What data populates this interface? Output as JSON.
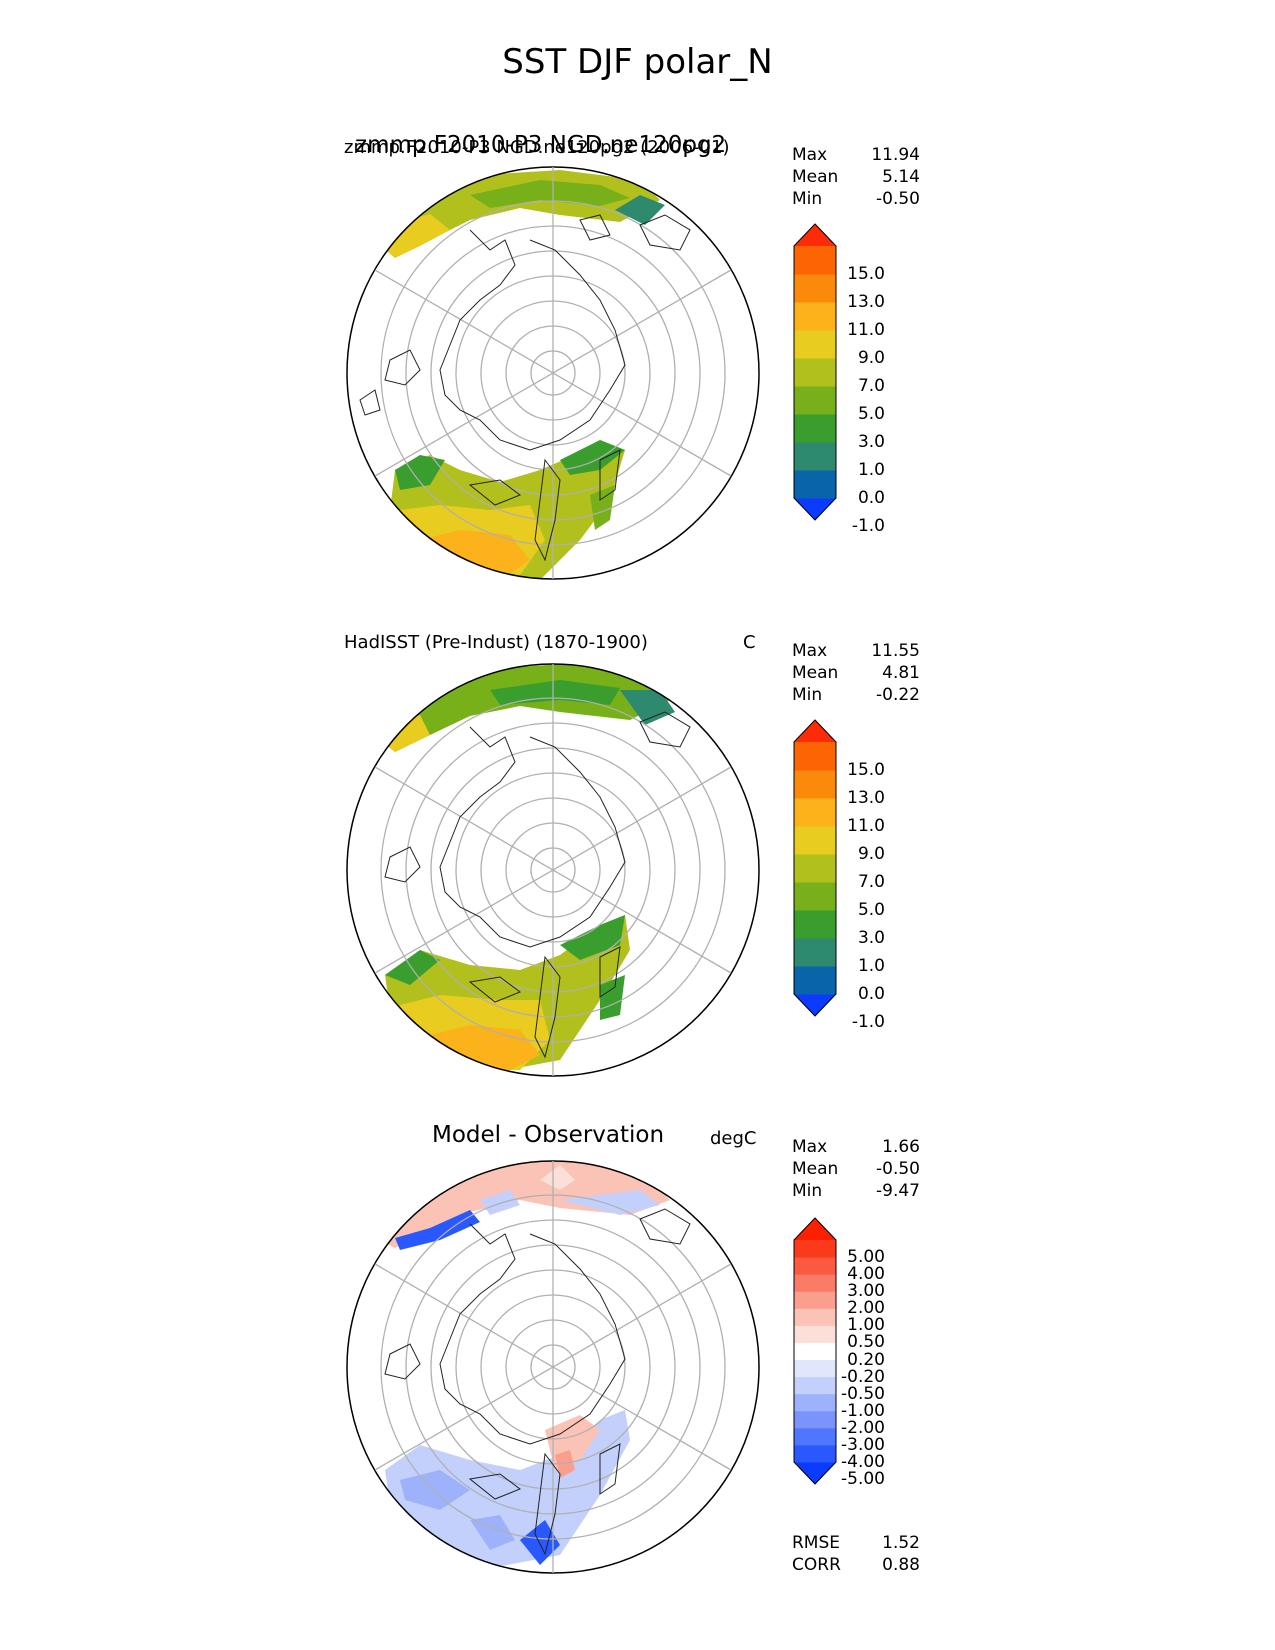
{
  "title": "SST DJF polar_N",
  "panels": [
    {
      "title_left": "zmmp.F2010-P3 NGD.ne120pg2 (2006-01)",
      "title_overlap": "zmmp.F2010-P3 NGD.ne120pg2",
      "units": "",
      "stats": [
        {
          "label": "Max",
          "value": "11.94"
        },
        {
          "label": "Mean",
          "value": "5.14"
        },
        {
          "label": "Min",
          "value": "-0.50"
        }
      ],
      "colorbar_labels": [
        "15.0",
        "13.0",
        "11.0",
        "9.0",
        "7.0",
        "5.0",
        "3.0",
        "1.0",
        "0.0",
        "-1.0"
      ]
    },
    {
      "title_left": "HadISST (Pre-Indust) (1870-1900)",
      "units": "C",
      "stats": [
        {
          "label": "Max",
          "value": "11.55"
        },
        {
          "label": "Mean",
          "value": "4.81"
        },
        {
          "label": "Min",
          "value": "-0.22"
        }
      ],
      "colorbar_labels": [
        "15.0",
        "13.0",
        "11.0",
        "9.0",
        "7.0",
        "5.0",
        "3.0",
        "1.0",
        "0.0",
        "-1.0"
      ]
    },
    {
      "title_center": "Model - Observation",
      "units": "degC",
      "stats": [
        {
          "label": "Max",
          "value": "1.66"
        },
        {
          "label": "Mean",
          "value": "-0.50"
        },
        {
          "label": "Min",
          "value": "-9.47"
        }
      ],
      "colorbar_labels": [
        "5.00",
        "4.00",
        "3.00",
        "2.00",
        "1.00",
        "0.50",
        "0.20",
        "-0.20",
        "-0.50",
        "-1.00",
        "-2.00",
        "-3.00",
        "-4.00",
        "-5.00"
      ],
      "metrics": [
        {
          "label": "RMSE",
          "value": "1.52"
        },
        {
          "label": "CORR",
          "value": "0.88"
        }
      ]
    }
  ],
  "colors": {
    "sst_scale": [
      "#0a3bff",
      "#0a64aa",
      "#2e8a6e",
      "#3a9e2e",
      "#78b01a",
      "#b2c01e",
      "#e8cc20",
      "#fcb21a",
      "#fc8a0a",
      "#fc6404",
      "#fc2c08"
    ],
    "diff_scale": [
      "#0a3bff",
      "#2a58ff",
      "#4e76ff",
      "#7a94fb",
      "#9eb2fb",
      "#c2d0fb",
      "#e0e6fb",
      "#ffffff",
      "#fbe0da",
      "#fbc2b6",
      "#fb9e8e",
      "#fb7c66",
      "#fb5a40",
      "#fb3a1c",
      "#fb2000"
    ]
  }
}
